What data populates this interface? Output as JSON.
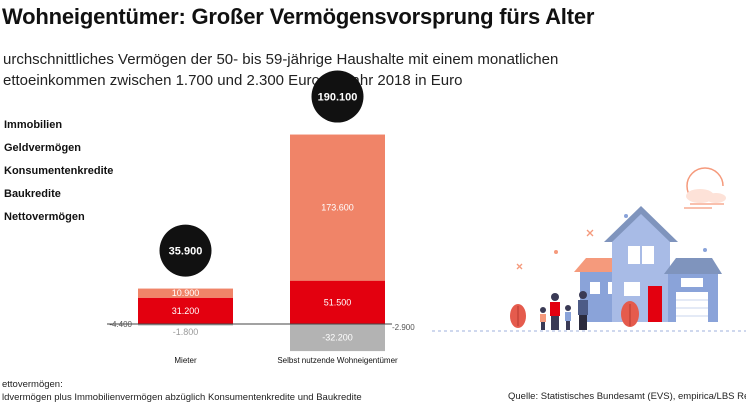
{
  "chart_data": {
    "type": "bar",
    "stacked": true,
    "title": "Wohneigentümer: Großer Vermögensvorsprung fürs Alter",
    "subtitle_lines": [
      "urchschnittliches Vermögen der 50- bis 59-jährige Haushalte mit einem monatlichen",
      "ettoeinkommen zwischen 1.700 und 2.300 Euro im Jahr 2018 in Euro"
    ],
    "categories": [
      "Mieter",
      "Selbst nutzende Wohneigentümer"
    ],
    "series": [
      {
        "name": "Immobilien",
        "values": [
          10900,
          173600
        ],
        "labels": [
          "10.900",
          "173.600"
        ],
        "color": "#f08468"
      },
      {
        "name": "Geldvermögen",
        "values": [
          31200,
          51500
        ],
        "labels": [
          "31.200",
          "51.500"
        ],
        "color": "#e3000f"
      },
      {
        "name": "Konsumentenkredite",
        "values": [
          -4400,
          -2900
        ],
        "labels": [
          "-4.400",
          "-2.900"
        ],
        "color": "#555555"
      },
      {
        "name": "Baukredite",
        "values": [
          -1800,
          -32200
        ],
        "labels": [
          "-1.800",
          "-32.200"
        ],
        "color": "#b3b3b3"
      }
    ],
    "totals": {
      "name": "Nettovermögen",
      "values": [
        35900,
        190100
      ],
      "labels": [
        "35.900",
        "190.100"
      ]
    },
    "ylim": [
      -32200,
      225000
    ],
    "grid": false,
    "legend_position": "left",
    "footnote_lines": [
      "ettovermögen:",
      "ldvermögen plus Immobilienvermögen abzüglich Konsumentenkredite und Baukredite"
    ],
    "source": "Quelle: Statistisches Bundesamt (EVS), empirica/LBS Research"
  },
  "legend_items": [
    "Immobilien",
    "Geldvermögen",
    "Konsumentenkredite",
    "Baukredite",
    "Nettovermögen"
  ],
  "colors": {
    "immobilien": "#f08468",
    "geld": "#e3000f",
    "baukredite": "#b3b3b3",
    "total_badge": "#111111",
    "house": "#8aa3d9",
    "roof": "#7f94bd",
    "accent": "#f59a7c"
  }
}
